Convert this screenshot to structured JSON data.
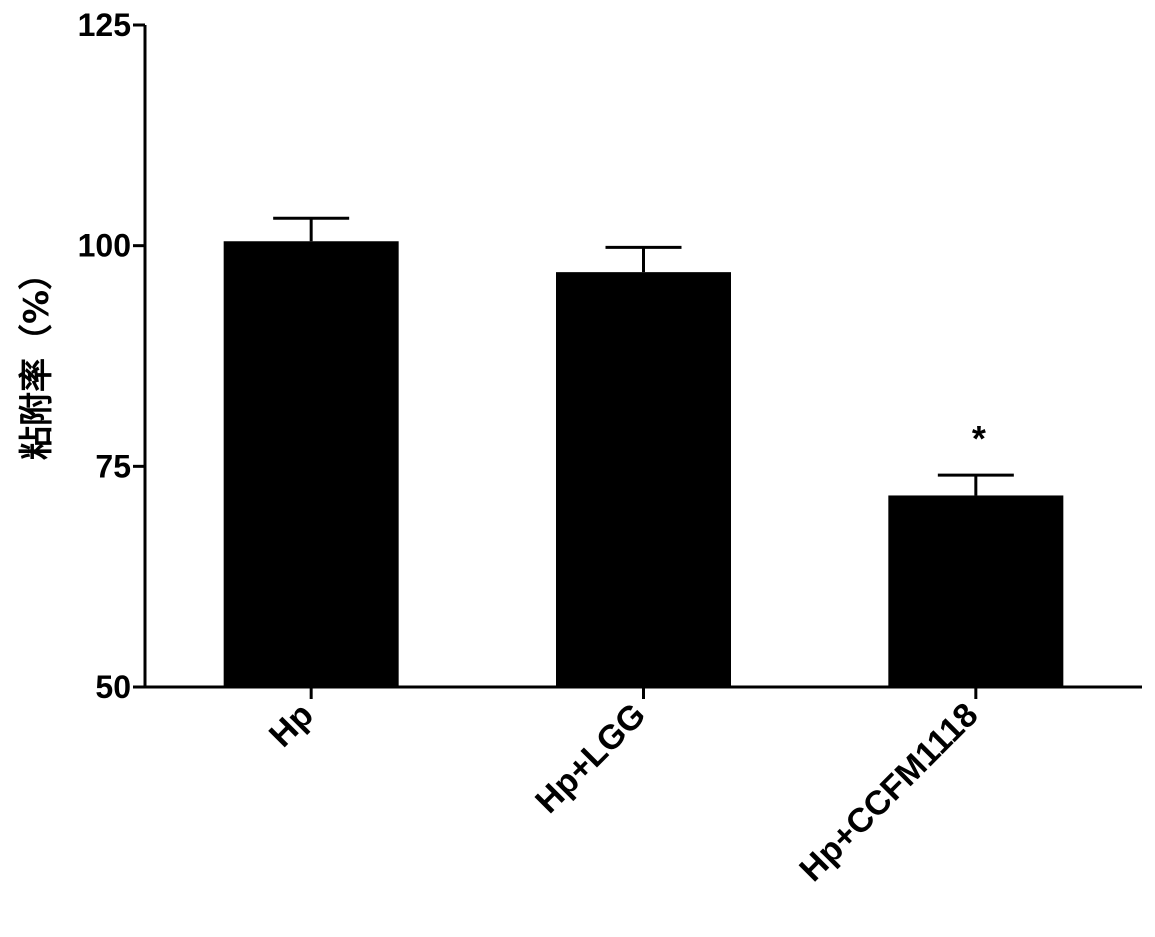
{
  "chart_data": {
    "type": "bar",
    "title": "",
    "xlabel": "",
    "ylabel": "粘附率（%）",
    "categories": [
      "Hp",
      "Hp+LGG",
      "Hp+CCFM1118"
    ],
    "values": [
      100.5,
      97.0,
      71.7
    ],
    "error_upper": [
      2.6,
      2.8,
      2.3
    ],
    "annotations": [
      "",
      "",
      "*"
    ],
    "ylim": [
      50,
      125
    ],
    "yticks": [
      50,
      75,
      100,
      125
    ],
    "ytick_labels": [
      "50",
      "75",
      "100",
      "125"
    ],
    "grid": false,
    "legend": "none",
    "colors": {
      "bar": "#000000",
      "axis": "#000000",
      "background": "#ffffff"
    }
  }
}
